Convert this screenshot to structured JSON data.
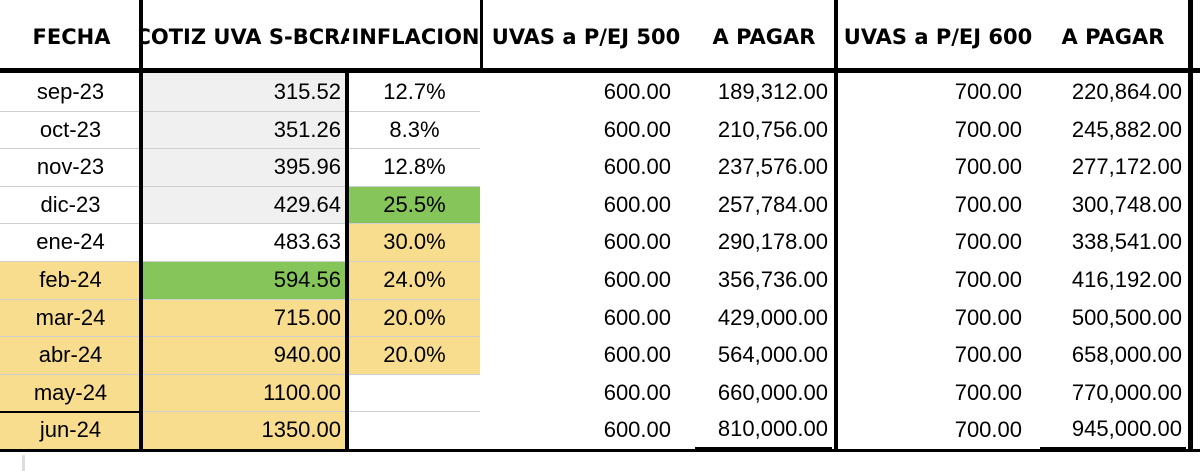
{
  "headers": {
    "fecha": "FECHA",
    "cotiz": "COTIZ UVA S-BCRA",
    "inflacion": "INFLACION",
    "uvas500": "UVAS a P/EJ 500",
    "pagar1": "A PAGAR",
    "uvas600": "UVAS a P/EJ 600",
    "pagar2": "A PAGAR"
  },
  "rows": [
    {
      "fecha": "sep-23",
      "cotiz": "315.52",
      "inflacion": "12.7%",
      "uvas500": "600.00",
      "pagar1": "189,312.00",
      "uvas600": "700.00",
      "pagar2": "220,864.00"
    },
    {
      "fecha": "oct-23",
      "cotiz": "351.26",
      "inflacion": "8.3%",
      "uvas500": "600.00",
      "pagar1": "210,756.00",
      "uvas600": "700.00",
      "pagar2": "245,882.00"
    },
    {
      "fecha": "nov-23",
      "cotiz": "395.96",
      "inflacion": "12.8%",
      "uvas500": "600.00",
      "pagar1": "237,576.00",
      "uvas600": "700.00",
      "pagar2": "277,172.00"
    },
    {
      "fecha": "dic-23",
      "cotiz": "429.64",
      "inflacion": "25.5%",
      "uvas500": "600.00",
      "pagar1": "257,784.00",
      "uvas600": "700.00",
      "pagar2": "300,748.00"
    },
    {
      "fecha": "ene-24",
      "cotiz": "483.63",
      "inflacion": "30.0%",
      "uvas500": "600.00",
      "pagar1": "290,178.00",
      "uvas600": "700.00",
      "pagar2": "338,541.00"
    },
    {
      "fecha": "feb-24",
      "cotiz": "594.56",
      "inflacion": "24.0%",
      "uvas500": "600.00",
      "pagar1": "356,736.00",
      "uvas600": "700.00",
      "pagar2": "416,192.00"
    },
    {
      "fecha": "mar-24",
      "cotiz": "715.00",
      "inflacion": "20.0%",
      "uvas500": "600.00",
      "pagar1": "429,000.00",
      "uvas600": "700.00",
      "pagar2": "500,500.00"
    },
    {
      "fecha": "abr-24",
      "cotiz": "940.00",
      "inflacion": "20.0%",
      "uvas500": "600.00",
      "pagar1": "564,000.00",
      "uvas600": "700.00",
      "pagar2": "658,000.00"
    },
    {
      "fecha": "may-24",
      "cotiz": "1100.00",
      "inflacion": "",
      "uvas500": "600.00",
      "pagar1": "660,000.00",
      "uvas600": "700.00",
      "pagar2": "770,000.00"
    },
    {
      "fecha": "jun-24",
      "cotiz": "1350.00",
      "inflacion": "",
      "uvas500": "600.00",
      "pagar1": "810,000.00",
      "uvas600": "700.00",
      "pagar2": "945,000.00"
    }
  ],
  "colors": {
    "yellow": "#f9dd8e",
    "green": "#85c559",
    "gray": "#f0f0f0"
  }
}
